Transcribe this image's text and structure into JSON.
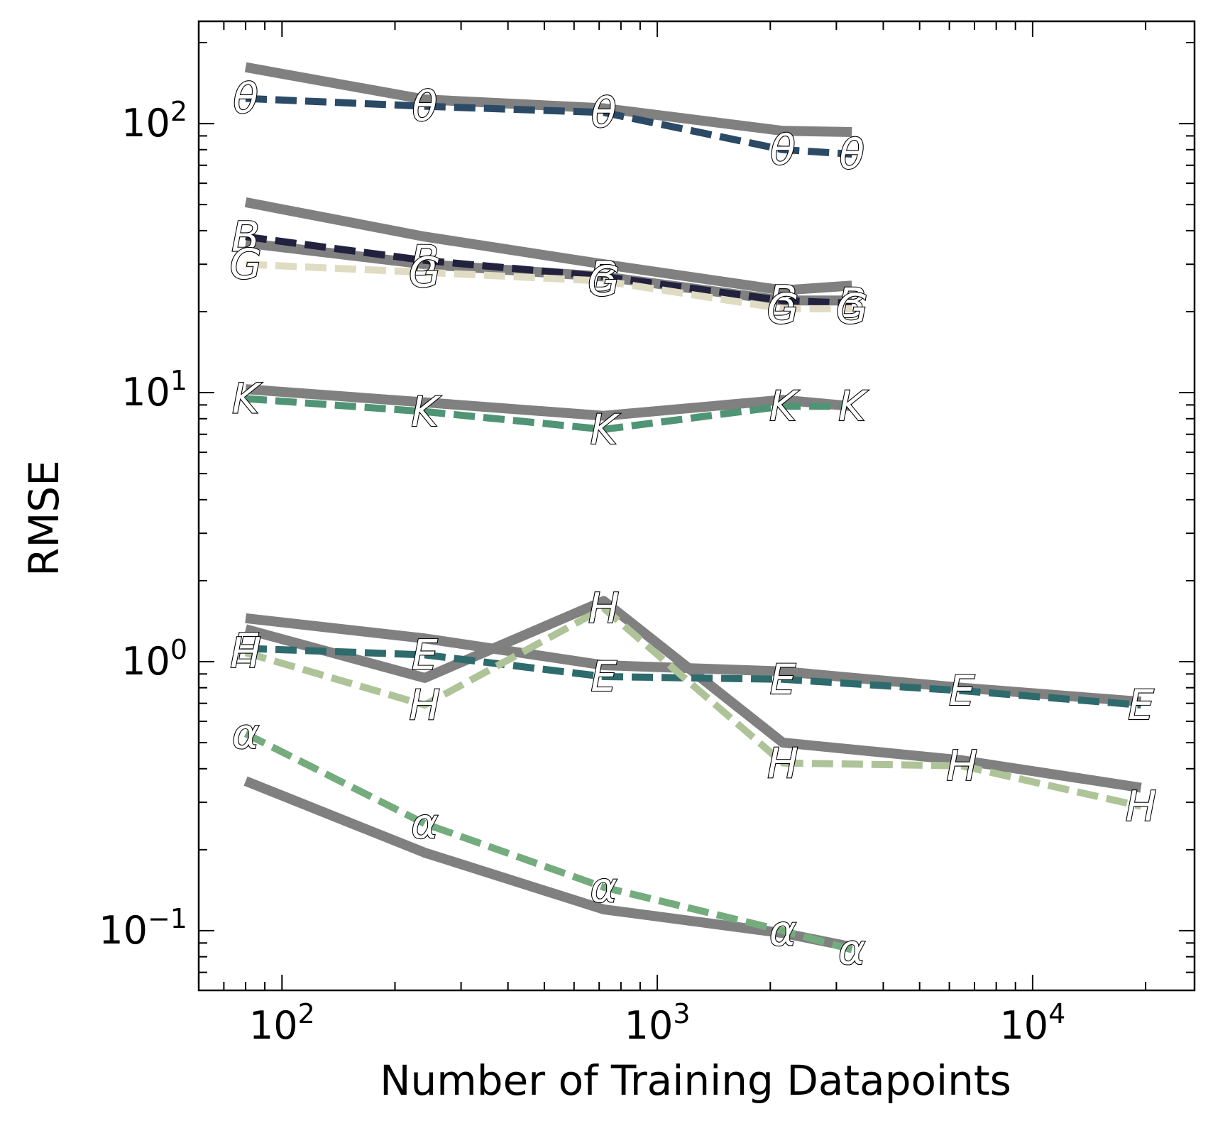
{
  "chart_data": {
    "type": "line",
    "xlabel": "Number of Training Datapoints",
    "ylabel": "RMSE",
    "xscale": "log",
    "yscale": "log",
    "xlim": [
      60,
      27000
    ],
    "ylim": [
      0.06,
      240
    ],
    "grid": false,
    "x_ticks": [
      {
        "value": 100,
        "base": "10",
        "exp": "2"
      },
      {
        "value": 1000,
        "base": "10",
        "exp": "3"
      },
      {
        "value": 10000,
        "base": "10",
        "exp": "4"
      }
    ],
    "y_ticks": [
      {
        "value": 0.1,
        "base": "10",
        "exp": "−1"
      },
      {
        "value": 1,
        "base": "10",
        "exp": "0"
      },
      {
        "value": 10,
        "base": "10",
        "exp": "1"
      },
      {
        "value": 100,
        "base": "10",
        "exp": "2"
      }
    ],
    "series": [
      {
        "label": "θ",
        "color": "#2b4a66",
        "x": [
          80,
          240,
          720,
          2160,
          3300
        ],
        "values": [
          124,
          116,
          110,
          80,
          77
        ],
        "reference": [
          162,
          123,
          114,
          94,
          93
        ]
      },
      {
        "label": "B",
        "color": "#22223f",
        "x": [
          80,
          240,
          720,
          2160,
          3300
        ],
        "values": [
          38,
          31,
          27,
          22,
          21.5
        ],
        "reference": [
          51,
          38,
          30,
          24,
          25
        ]
      },
      {
        "label": "G",
        "color": "#e0dcc3",
        "x": [
          80,
          240,
          720,
          2160,
          3300
        ],
        "values": [
          30,
          28,
          26,
          20.5,
          20.5
        ],
        "reference": [
          36,
          30,
          27,
          22,
          22
        ]
      },
      {
        "label": "K",
        "color": "#4f9475",
        "x": [
          80,
          240,
          720,
          2160,
          3300
        ],
        "values": [
          9.5,
          8.5,
          7.3,
          8.9,
          8.9
        ],
        "reference": [
          10.3,
          9.2,
          8.2,
          9.4,
          8.9
        ]
      },
      {
        "label": "E",
        "color": "#2e6b6d",
        "x": [
          80,
          240,
          720,
          2160,
          6480,
          19440
        ],
        "values": [
          1.12,
          1.06,
          0.88,
          0.86,
          0.78,
          0.69
        ],
        "reference": [
          1.45,
          1.22,
          0.97,
          0.92,
          0.8,
          0.71
        ]
      },
      {
        "label": "H",
        "color": "#aec498",
        "x": [
          80,
          240,
          720,
          2160,
          6480,
          19440
        ],
        "values": [
          1.08,
          0.69,
          1.58,
          0.42,
          0.41,
          0.29
        ],
        "reference": [
          1.32,
          0.87,
          1.68,
          0.5,
          0.43,
          0.34
        ]
      },
      {
        "label": "α",
        "color": "#74ac7e",
        "x": [
          80,
          240,
          720,
          2160,
          3300
        ],
        "values": [
          0.54,
          0.25,
          0.145,
          0.1,
          0.085
        ],
        "reference": [
          0.36,
          0.195,
          0.12,
          0.098,
          0.087
        ]
      }
    ],
    "reference_color": "#808080"
  }
}
